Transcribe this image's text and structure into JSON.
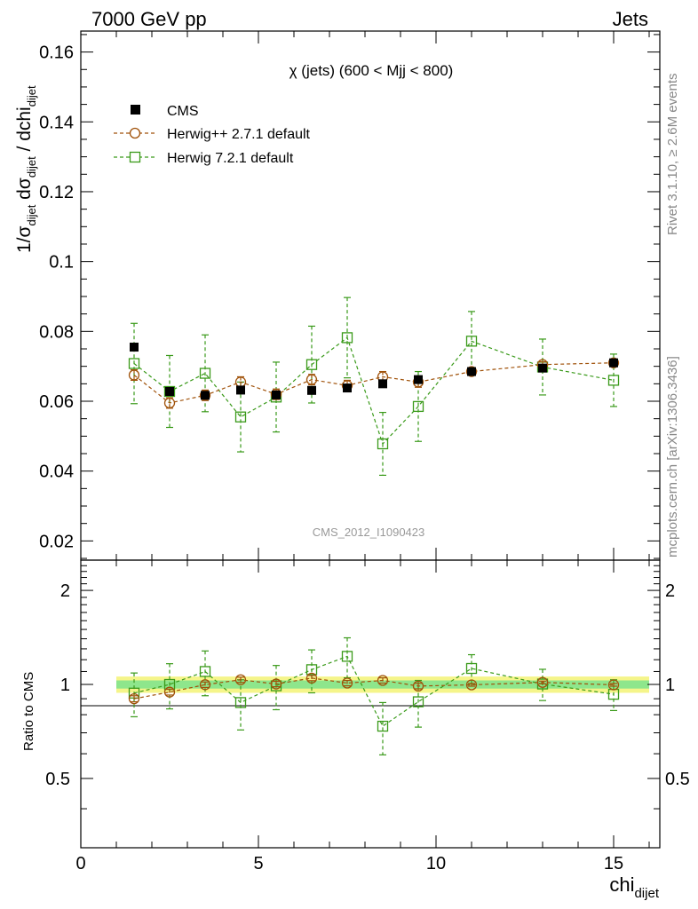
{
  "header": {
    "left": "7000 GeV pp",
    "right": "Jets"
  },
  "side_labels": {
    "rivet": "Rivet 3.1.10, ≥ 2.6M events",
    "mcplots": "mcplots.cern.ch [arXiv:1306.3436]"
  },
  "chart_data": [
    {
      "type": "scatter",
      "title": "χ (jets) (600 < Mjj <  800)",
      "watermark": "CMS_2012_I1090423",
      "xlabel": "chi_dijet",
      "ylabel": "1/σ_dijet dσ_dijet / dchi_dijet",
      "xlim": [
        0,
        16.3
      ],
      "ylim": [
        0.0145,
        0.166
      ],
      "yticks": [
        0.02,
        0.04,
        0.06,
        0.08,
        0.1,
        0.12,
        0.14,
        0.16
      ],
      "ytick_labels": [
        "0.02",
        "0.04",
        "0.06",
        "0.08",
        "0.1",
        "0.12",
        "0.14",
        "0.16"
      ],
      "legend_position": "top-left",
      "x": [
        1.5,
        2.5,
        3.5,
        4.5,
        5.5,
        6.5,
        7.5,
        8.5,
        9.5,
        11.0,
        13.0,
        15.0
      ],
      "series": [
        {
          "name": "CMS",
          "style": "data",
          "color": "#000000",
          "values": [
            0.0755,
            0.0628,
            0.0617,
            0.0632,
            0.0618,
            0.0631,
            0.0638,
            0.065,
            0.0662,
            0.0685,
            0.0695,
            0.071
          ],
          "errors": [
            0.0004,
            0.0004,
            0.0004,
            0.0004,
            0.0004,
            0.0004,
            0.0004,
            0.0004,
            0.0004,
            0.0004,
            0.0004,
            0.0004
          ]
        },
        {
          "name": "Herwig++ 2.7.1 default",
          "style": "circle",
          "color": "#a0520a",
          "values": [
            0.0675,
            0.0595,
            0.0617,
            0.0655,
            0.062,
            0.0662,
            0.0645,
            0.067,
            0.0655,
            0.0685,
            0.0705,
            0.071
          ],
          "errors": [
            0.0015,
            0.0015,
            0.0015,
            0.0015,
            0.0015,
            0.0015,
            0.0015,
            0.0015,
            0.0015,
            0.0008,
            0.0008,
            0.0008
          ]
        },
        {
          "name": "Herwig 7.2.1 default",
          "style": "square",
          "color": "#3a9a1a",
          "values": [
            0.0708,
            0.0628,
            0.068,
            0.0555,
            0.0612,
            0.0705,
            0.0782,
            0.0478,
            0.0585,
            0.0772,
            0.0698,
            0.066
          ],
          "errors": [
            0.0115,
            0.0103,
            0.011,
            0.01,
            0.01,
            0.011,
            0.0115,
            0.009,
            0.01,
            0.0085,
            0.008,
            0.0075
          ]
        }
      ]
    },
    {
      "type": "scatter",
      "ylabel": "Ratio to CMS",
      "xlabel": "chi_dijet",
      "xlim": [
        0,
        16.3
      ],
      "ylim": [
        0.3,
        2.5
      ],
      "y_scale": "log",
      "yticks": [
        0.5,
        1,
        2
      ],
      "ytick_labels": [
        "0.5",
        "1",
        "2"
      ],
      "xticks": [
        0,
        5,
        10,
        15
      ],
      "xtick_labels": [
        "0",
        "5",
        "10",
        "15"
      ],
      "band_x_range": [
        1.0,
        16.0
      ],
      "bands": [
        {
          "lo": 0.94,
          "hi": 1.06,
          "color": "#f5f58a"
        },
        {
          "lo": 0.97,
          "hi": 1.03,
          "color": "#8ee68c"
        }
      ],
      "x": [
        1.5,
        2.5,
        3.5,
        4.5,
        5.5,
        6.5,
        7.5,
        8.5,
        9.5,
        11.0,
        13.0,
        15.0
      ],
      "series": [
        {
          "name": "Herwig++ 2.7.1 default",
          "style": "circle",
          "color": "#a0520a",
          "values": [
            0.9,
            0.945,
            0.998,
            1.035,
            1.003,
            1.048,
            1.01,
            1.03,
            0.988,
            0.997,
            1.015,
            0.997
          ],
          "errors": [
            0.02,
            0.02,
            0.02,
            0.02,
            0.02,
            0.02,
            0.02,
            0.02,
            0.02,
            0.01,
            0.01,
            0.01
          ]
        },
        {
          "name": "Herwig 7.2.1 default",
          "style": "square",
          "color": "#3a9a1a",
          "values": [
            0.938,
            1.0,
            1.1,
            0.875,
            0.99,
            1.115,
            1.23,
            0.735,
            0.88,
            1.125,
            1.003,
            0.93
          ],
          "errors": [
            0.15,
            0.165,
            0.18,
            0.16,
            0.16,
            0.175,
            0.18,
            0.14,
            0.15,
            0.12,
            0.115,
            0.105
          ]
        }
      ]
    }
  ]
}
